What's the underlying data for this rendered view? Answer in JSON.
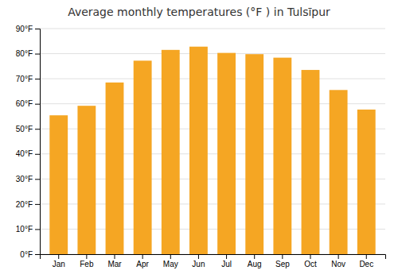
{
  "chart_data": {
    "type": "bar",
    "title": "Average monthly temperatures (°F ) in Tulsīpur",
    "categories": [
      "Jan",
      "Feb",
      "Mar",
      "Apr",
      "May",
      "Jun",
      "Jul",
      "Aug",
      "Sep",
      "Oct",
      "Nov",
      "Dec"
    ],
    "values": [
      55.4,
      59.2,
      68.5,
      77.2,
      81.5,
      82.8,
      80.3,
      79.8,
      78.4,
      73.5,
      65.5,
      57.7
    ],
    "color": "#F5A623",
    "ylim": [
      0,
      90
    ],
    "yticks": [
      {
        "value": 0,
        "label": "0°F"
      },
      {
        "value": 10,
        "label": "10°F"
      },
      {
        "value": 20,
        "label": "20°F"
      },
      {
        "value": 30,
        "label": "30°F"
      },
      {
        "value": 40,
        "label": "40°F"
      },
      {
        "value": 50,
        "label": "50°F"
      },
      {
        "value": 60,
        "label": "60°F"
      },
      {
        "value": 70,
        "label": "70°F"
      },
      {
        "value": 80,
        "label": "80°F"
      },
      {
        "value": 90,
        "label": "90°F"
      }
    ],
    "grid": true
  }
}
